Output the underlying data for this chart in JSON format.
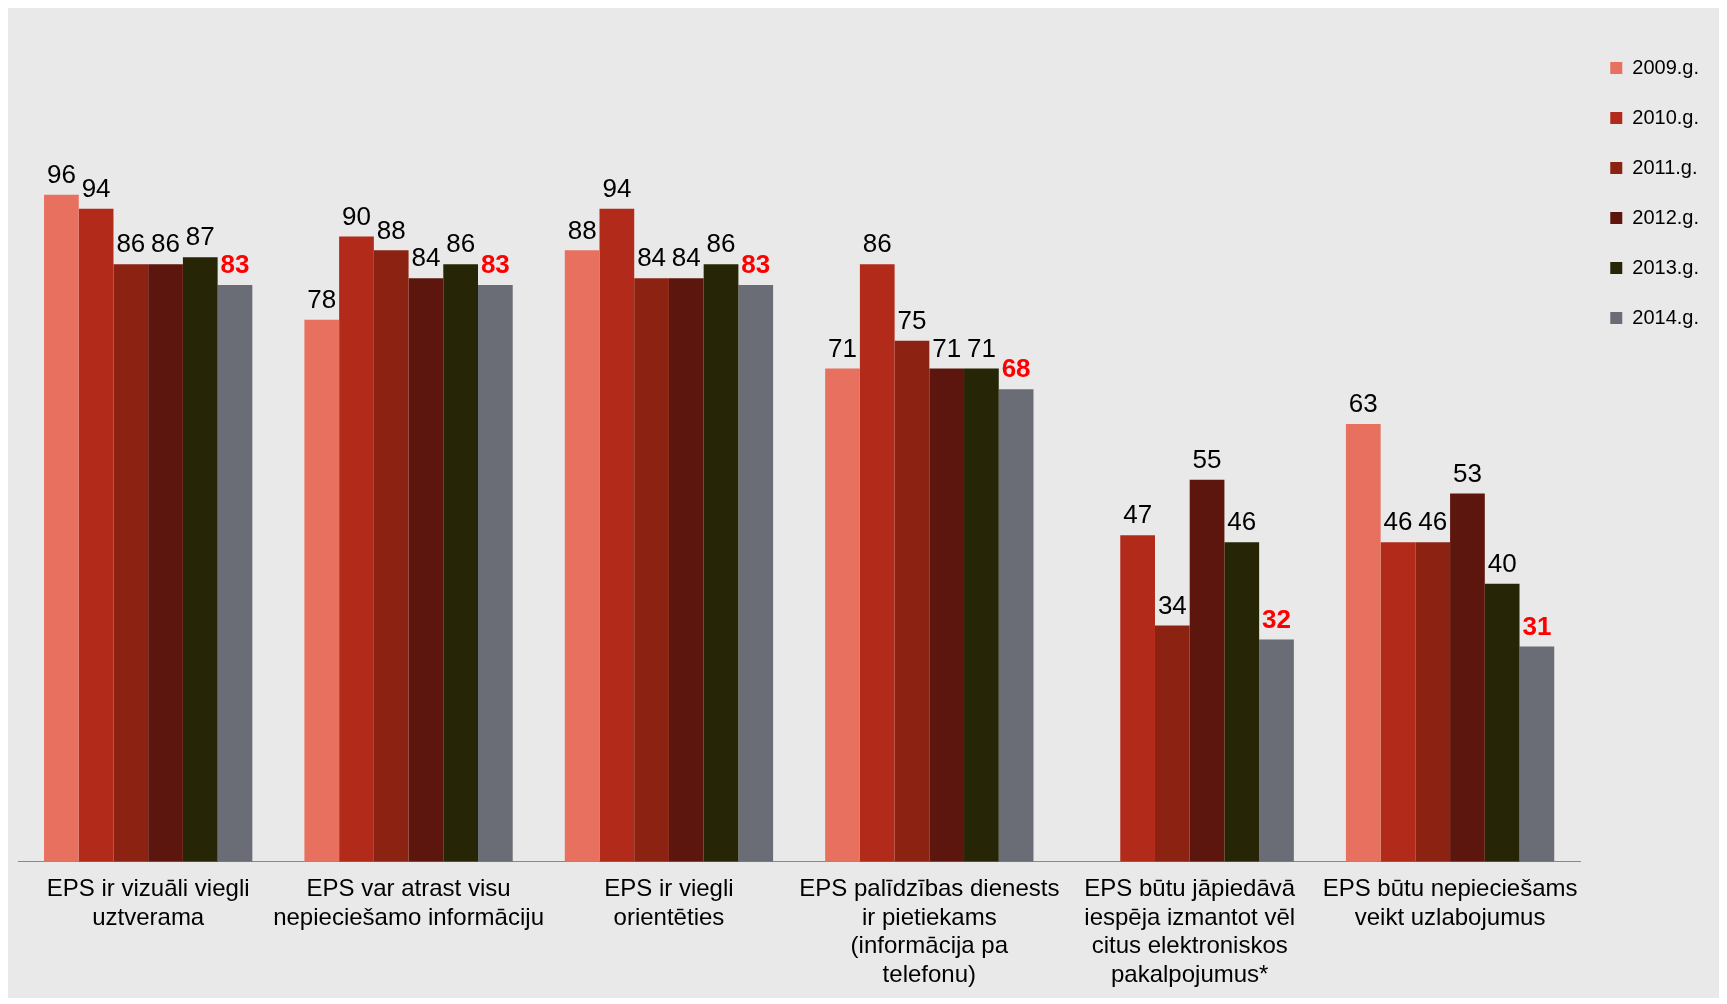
{
  "chart_data": {
    "type": "bar",
    "categories": [
      "EPS ir vizuāli viegli uztverama",
      "EPS var atrast visu nepieciešamo informāciju",
      "EPS ir viegli orientēties",
      "EPS palīdzības dienests ir pietiekams (informācija pa telefonu)",
      "EPS būtu jāpiedāvā iespēja izmantot vēl citus elektroniskos pakalpojumus*",
      "EPS būtu nepieciešams veikt uzlabojumus"
    ],
    "series": [
      {
        "name": "2009.g.",
        "color": "#e8705e",
        "values": [
          96,
          78,
          88,
          71,
          null,
          63
        ]
      },
      {
        "name": "2010.g.",
        "color": "#b22a1a",
        "values": [
          94,
          90,
          94,
          86,
          47,
          46
        ]
      },
      {
        "name": "2011.g.",
        "color": "#8b2212",
        "values": [
          86,
          88,
          84,
          75,
          34,
          46
        ]
      },
      {
        "name": "2012.g.",
        "color": "#5c160e",
        "values": [
          86,
          84,
          84,
          71,
          55,
          53
        ]
      },
      {
        "name": "2013.g.",
        "color": "#262505",
        "values": [
          87,
          86,
          86,
          71,
          46,
          40
        ]
      },
      {
        "name": "2014.g.",
        "color": "#6a6d75",
        "values": [
          83,
          83,
          83,
          68,
          32,
          31
        ]
      }
    ],
    "data_labels": true,
    "legend": "right",
    "grid": false
  }
}
